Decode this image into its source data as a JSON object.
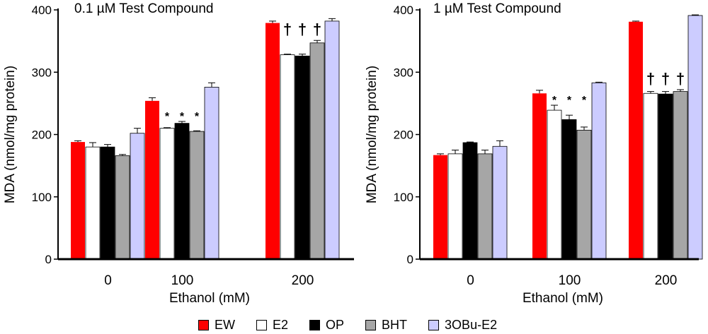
{
  "colors": {
    "EW": "#ff0000",
    "E2": "#ffffff",
    "OP": "#000000",
    "BHT": "#a6a6a6",
    "3OBu-E2": "#ccccff"
  },
  "legend": [
    {
      "label": "EW",
      "color": "#ff0000"
    },
    {
      "label": "E2",
      "color": "#ffffff"
    },
    {
      "label": "OP",
      "color": "#000000"
    },
    {
      "label": "BHT",
      "color": "#a6a6a6"
    },
    {
      "label": "3OBu-E2",
      "color": "#ccccff"
    }
  ],
  "chart_data": [
    {
      "type": "bar",
      "title": "0.1 µM Test Compound",
      "xlabel": "Ethanol (mM)",
      "ylabel": "MDA (nmol/mg protein)",
      "ylim": [
        0,
        400
      ],
      "yticks": [
        0,
        100,
        200,
        300,
        400
      ],
      "categories": [
        "0",
        "100",
        "200"
      ],
      "series": [
        {
          "name": "EW",
          "values": [
            188,
            254,
            379
          ],
          "errors": [
            2,
            5,
            3
          ]
        },
        {
          "name": "E2",
          "values": [
            180,
            210,
            328
          ],
          "errors": [
            7,
            1,
            1
          ]
        },
        {
          "name": "OP",
          "values": [
            180,
            218,
            326
          ],
          "errors": [
            4,
            3,
            3
          ]
        },
        {
          "name": "BHT",
          "values": [
            166,
            205,
            347
          ],
          "errors": [
            2,
            1,
            4
          ]
        },
        {
          "name": "3OBu-E2",
          "values": [
            202,
            276,
            382
          ],
          "errors": [
            8,
            7,
            4
          ]
        }
      ],
      "annotations": [
        {
          "category": "100",
          "series": "E2",
          "text": "*"
        },
        {
          "category": "100",
          "series": "OP",
          "text": "*"
        },
        {
          "category": "100",
          "series": "BHT",
          "text": "*"
        },
        {
          "category": "200",
          "series": "E2",
          "text": "†"
        },
        {
          "category": "200",
          "series": "OP",
          "text": "†"
        },
        {
          "category": "200",
          "series": "BHT",
          "text": "†"
        }
      ]
    },
    {
      "type": "bar",
      "title": "1 µM Test Compound",
      "xlabel": "Ethanol (mM)",
      "ylabel": "MDA (nmol/mg protein)",
      "ylim": [
        0,
        400
      ],
      "yticks": [
        0,
        100,
        200,
        300,
        400
      ],
      "categories": [
        "0",
        "100",
        "200"
      ],
      "series": [
        {
          "name": "EW",
          "values": [
            167,
            266,
            381
          ],
          "errors": [
            2,
            5,
            1
          ]
        },
        {
          "name": "E2",
          "values": [
            169,
            239,
            266
          ],
          "errors": [
            6,
            8,
            3
          ]
        },
        {
          "name": "OP",
          "values": [
            187,
            224,
            265
          ],
          "errors": [
            1,
            7,
            4
          ]
        },
        {
          "name": "BHT",
          "values": [
            169,
            207,
            269
          ],
          "errors": [
            6,
            5,
            3
          ]
        },
        {
          "name": "3OBu-E2",
          "values": [
            181,
            283,
            391
          ],
          "errors": [
            9,
            1,
            1
          ]
        }
      ],
      "annotations": [
        {
          "category": "100",
          "series": "E2",
          "text": "*"
        },
        {
          "category": "100",
          "series": "OP",
          "text": "*"
        },
        {
          "category": "100",
          "series": "BHT",
          "text": "*"
        },
        {
          "category": "200",
          "series": "E2",
          "text": "†"
        },
        {
          "category": "200",
          "series": "OP",
          "text": "†"
        },
        {
          "category": "200",
          "series": "BHT",
          "text": "†"
        }
      ]
    }
  ]
}
